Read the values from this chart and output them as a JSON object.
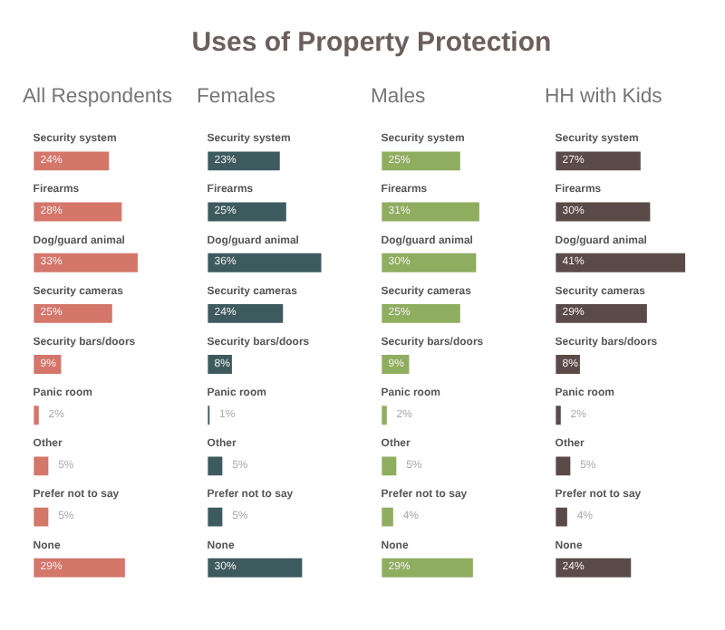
{
  "chart_data": [
    {
      "type": "bar",
      "orientation": "horizontal",
      "annotations": [
        "Uses of Property Protection"
      ],
      "subtitle": "All Respondents",
      "categories": [
        "Security system",
        "Firearms",
        "Dog/guard animal",
        "Security cameras",
        "Security bars/doors",
        "Panic room",
        "Other",
        "Prefer not to say",
        "None"
      ],
      "values": [
        24,
        28,
        33,
        25,
        9,
        2,
        5,
        5,
        29
      ],
      "value_labels": [
        "24%",
        "28%",
        "33%",
        "25%",
        "9%",
        "2%",
        "5%",
        "5%",
        "29%"
      ],
      "color": "#d4766a"
    },
    {
      "type": "bar",
      "orientation": "horizontal",
      "subtitle": "Females",
      "categories": [
        "Security system",
        "Firearms",
        "Dog/guard animal",
        "Security cameras",
        "Security bars/doors",
        "Panic room",
        "Other",
        "Prefer not to say",
        "None"
      ],
      "values": [
        23,
        25,
        36,
        24,
        8,
        1,
        5,
        5,
        30
      ],
      "value_labels": [
        "23%",
        "25%",
        "36%",
        "24%",
        "8%",
        "1%",
        "5%",
        "5%",
        "30%"
      ],
      "color": "#3d5a5f"
    },
    {
      "type": "bar",
      "orientation": "horizontal",
      "subtitle": "Males",
      "categories": [
        "Security system",
        "Firearms",
        "Dog/guard animal",
        "Security cameras",
        "Security bars/doors",
        "Panic room",
        "Other",
        "Prefer not to say",
        "None"
      ],
      "values": [
        25,
        31,
        30,
        25,
        9,
        2,
        5,
        4,
        29
      ],
      "value_labels": [
        "25%",
        "31%",
        "30%",
        "25%",
        "9%",
        "2%",
        "5%",
        "4%",
        "29%"
      ],
      "color": "#8fad5f"
    },
    {
      "type": "bar",
      "orientation": "horizontal",
      "subtitle": "HH with Kids",
      "categories": [
        "Security system",
        "Firearms",
        "Dog/guard animal",
        "Security cameras",
        "Security bars/doors",
        "Panic room",
        "Other",
        "Prefer not to say",
        "None"
      ],
      "values": [
        27,
        30,
        41,
        29,
        8,
        2,
        5,
        4,
        24
      ],
      "value_labels": [
        "27%",
        "30%",
        "41%",
        "29%",
        "8%",
        "2%",
        "5%",
        "4%",
        "24%"
      ],
      "color": "#5a4a48"
    }
  ]
}
